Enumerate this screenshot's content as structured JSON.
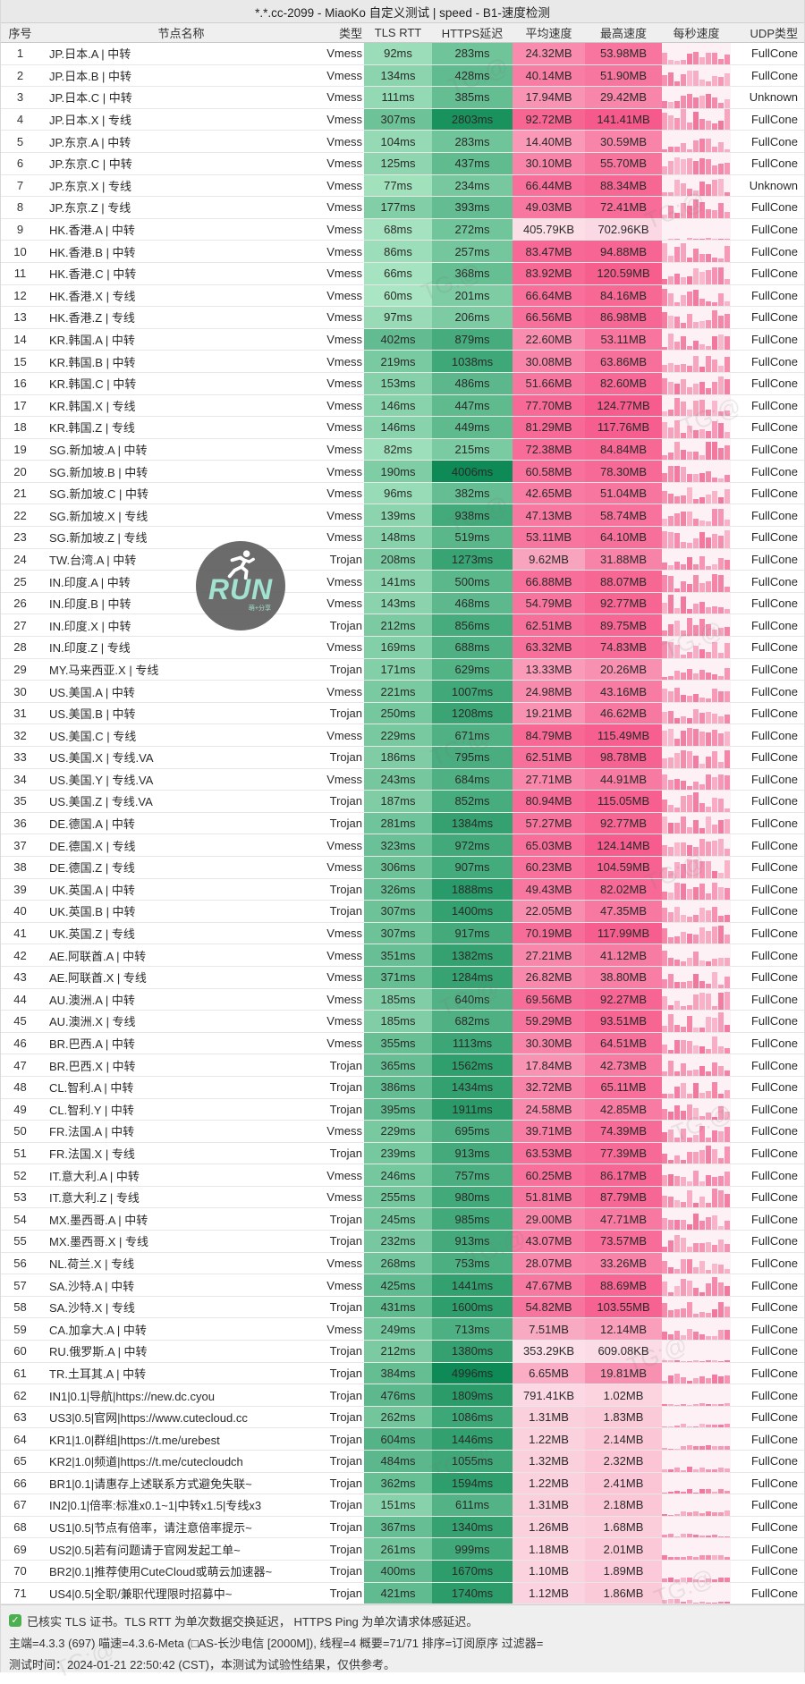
{
  "title": "*.*.cc-2099 - MiaoKo 自定义测试 | speed - B1-速度检测",
  "columns": [
    "序号",
    "节点名称",
    "类型",
    "TLS RTT",
    "HTTPS延迟",
    "平均速度",
    "最高速度",
    "每秒速度",
    "UDP类型"
  ],
  "rows": [
    [
      1,
      "JP.日本.A | 中转",
      "Vmess",
      "92ms",
      "283ms",
      "24.32MB",
      "53.98MB",
      "FullCone"
    ],
    [
      2,
      "JP.日本.B | 中转",
      "Vmess",
      "134ms",
      "428ms",
      "40.14MB",
      "51.90MB",
      "FullCone"
    ],
    [
      3,
      "JP.日本.C | 中转",
      "Vmess",
      "111ms",
      "385ms",
      "17.94MB",
      "29.42MB",
      "Unknown"
    ],
    [
      4,
      "JP.日本.X | 专线",
      "Vmess",
      "307ms",
      "2803ms",
      "92.72MB",
      "141.41MB",
      "FullCone"
    ],
    [
      5,
      "JP.东京.A | 中转",
      "Vmess",
      "104ms",
      "283ms",
      "14.40MB",
      "30.59MB",
      "FullCone"
    ],
    [
      6,
      "JP.东京.C | 中转",
      "Vmess",
      "125ms",
      "437ms",
      "30.10MB",
      "55.70MB",
      "FullCone"
    ],
    [
      7,
      "JP.东京.X | 专线",
      "Vmess",
      "77ms",
      "234ms",
      "66.44MB",
      "88.34MB",
      "Unknown"
    ],
    [
      8,
      "JP.东京.Z | 专线",
      "Vmess",
      "177ms",
      "393ms",
      "49.03MB",
      "72.41MB",
      "FullCone"
    ],
    [
      9,
      "HK.香港.A | 中转",
      "Vmess",
      "68ms",
      "272ms",
      "405.79KB",
      "702.96KB",
      "FullCone"
    ],
    [
      10,
      "HK.香港.B | 中转",
      "Vmess",
      "86ms",
      "257ms",
      "83.47MB",
      "94.88MB",
      "FullCone"
    ],
    [
      11,
      "HK.香港.C | 中转",
      "Vmess",
      "66ms",
      "368ms",
      "83.92MB",
      "120.59MB",
      "FullCone"
    ],
    [
      12,
      "HK.香港.X | 专线",
      "Vmess",
      "60ms",
      "201ms",
      "66.64MB",
      "84.16MB",
      "FullCone"
    ],
    [
      13,
      "HK.香港.Z | 专线",
      "Vmess",
      "97ms",
      "206ms",
      "66.56MB",
      "86.98MB",
      "FullCone"
    ],
    [
      14,
      "KR.韩国.A | 中转",
      "Vmess",
      "402ms",
      "879ms",
      "22.60MB",
      "53.11MB",
      "FullCone"
    ],
    [
      15,
      "KR.韩国.B | 中转",
      "Vmess",
      "219ms",
      "1038ms",
      "30.08MB",
      "63.86MB",
      "FullCone"
    ],
    [
      16,
      "KR.韩国.C | 中转",
      "Vmess",
      "153ms",
      "486ms",
      "51.66MB",
      "82.60MB",
      "FullCone"
    ],
    [
      17,
      "KR.韩国.X | 专线",
      "Vmess",
      "146ms",
      "447ms",
      "77.70MB",
      "124.77MB",
      "FullCone"
    ],
    [
      18,
      "KR.韩国.Z | 专线",
      "Vmess",
      "146ms",
      "449ms",
      "81.29MB",
      "117.76MB",
      "FullCone"
    ],
    [
      19,
      "SG.新加坡.A | 中转",
      "Vmess",
      "82ms",
      "215ms",
      "72.38MB",
      "84.84MB",
      "FullCone"
    ],
    [
      20,
      "SG.新加坡.B | 中转",
      "Vmess",
      "190ms",
      "4006ms",
      "60.58MB",
      "78.30MB",
      "FullCone"
    ],
    [
      21,
      "SG.新加坡.C | 中转",
      "Vmess",
      "96ms",
      "382ms",
      "42.65MB",
      "51.04MB",
      "FullCone"
    ],
    [
      22,
      "SG.新加坡.X | 专线",
      "Vmess",
      "139ms",
      "938ms",
      "47.13MB",
      "58.74MB",
      "FullCone"
    ],
    [
      23,
      "SG.新加坡.Z | 专线",
      "Vmess",
      "148ms",
      "519ms",
      "53.11MB",
      "64.10MB",
      "FullCone"
    ],
    [
      24,
      "TW.台湾.A | 中转",
      "Trojan",
      "208ms",
      "1273ms",
      "9.62MB",
      "31.88MB",
      "FullCone"
    ],
    [
      25,
      "IN.印度.A | 中转",
      "Vmess",
      "141ms",
      "500ms",
      "66.88MB",
      "88.07MB",
      "FullCone"
    ],
    [
      26,
      "IN.印度.B | 中转",
      "Vmess",
      "143ms",
      "468ms",
      "54.79MB",
      "92.77MB",
      "FullCone"
    ],
    [
      27,
      "IN.印度.X | 中转",
      "Trojan",
      "212ms",
      "856ms",
      "62.51MB",
      "89.75MB",
      "FullCone"
    ],
    [
      28,
      "IN.印度.Z | 专线",
      "Vmess",
      "169ms",
      "688ms",
      "63.32MB",
      "74.83MB",
      "FullCone"
    ],
    [
      29,
      "MY.马来西亚.X | 专线",
      "Trojan",
      "171ms",
      "629ms",
      "13.33MB",
      "20.26MB",
      "FullCone"
    ],
    [
      30,
      "US.美国.A | 中转",
      "Vmess",
      "221ms",
      "1007ms",
      "24.98MB",
      "43.16MB",
      "FullCone"
    ],
    [
      31,
      "US.美国.B | 中转",
      "Trojan",
      "250ms",
      "1208ms",
      "19.21MB",
      "46.62MB",
      "FullCone"
    ],
    [
      32,
      "US.美国.C | 专线",
      "Vmess",
      "229ms",
      "671ms",
      "84.79MB",
      "115.49MB",
      "FullCone"
    ],
    [
      33,
      "US.美国.X | 专线.VA",
      "Trojan",
      "186ms",
      "795ms",
      "62.51MB",
      "98.78MB",
      "FullCone"
    ],
    [
      34,
      "US.美国.Y | 专线.VA",
      "Vmess",
      "243ms",
      "684ms",
      "27.71MB",
      "44.91MB",
      "FullCone"
    ],
    [
      35,
      "US.美国.Z | 专线.VA",
      "Trojan",
      "187ms",
      "852ms",
      "80.94MB",
      "115.05MB",
      "FullCone"
    ],
    [
      36,
      "DE.德国.A | 中转",
      "Trojan",
      "281ms",
      "1384ms",
      "57.27MB",
      "92.77MB",
      "FullCone"
    ],
    [
      37,
      "DE.德国.X | 专线",
      "Vmess",
      "323ms",
      "972ms",
      "65.03MB",
      "124.14MB",
      "FullCone"
    ],
    [
      38,
      "DE.德国.Z | 专线",
      "Vmess",
      "306ms",
      "907ms",
      "60.23MB",
      "104.59MB",
      "FullCone"
    ],
    [
      39,
      "UK.英国.A | 中转",
      "Trojan",
      "326ms",
      "1888ms",
      "49.43MB",
      "82.02MB",
      "FullCone"
    ],
    [
      40,
      "UK.英国.B | 中转",
      "Trojan",
      "307ms",
      "1400ms",
      "22.05MB",
      "47.35MB",
      "FullCone"
    ],
    [
      41,
      "UK.英国.Z | 专线",
      "Vmess",
      "307ms",
      "917ms",
      "70.19MB",
      "117.99MB",
      "FullCone"
    ],
    [
      42,
      "AE.阿联酋.A | 中转",
      "Vmess",
      "351ms",
      "1382ms",
      "27.21MB",
      "41.12MB",
      "FullCone"
    ],
    [
      43,
      "AE.阿联酋.X | 专线",
      "Vmess",
      "371ms",
      "1284ms",
      "26.82MB",
      "38.80MB",
      "FullCone"
    ],
    [
      44,
      "AU.澳洲.A | 中转",
      "Vmess",
      "185ms",
      "640ms",
      "69.56MB",
      "92.27MB",
      "FullCone"
    ],
    [
      45,
      "AU.澳洲.X | 专线",
      "Vmess",
      "185ms",
      "682ms",
      "59.29MB",
      "93.51MB",
      "FullCone"
    ],
    [
      46,
      "BR.巴西.A | 中转",
      "Vmess",
      "355ms",
      "1113ms",
      "30.30MB",
      "64.51MB",
      "FullCone"
    ],
    [
      47,
      "BR.巴西.X | 中转",
      "Trojan",
      "365ms",
      "1562ms",
      "17.84MB",
      "42.73MB",
      "FullCone"
    ],
    [
      48,
      "CL.智利.A | 中转",
      "Trojan",
      "386ms",
      "1434ms",
      "32.72MB",
      "65.11MB",
      "FullCone"
    ],
    [
      49,
      "CL.智利.Y | 中转",
      "Trojan",
      "395ms",
      "1911ms",
      "24.58MB",
      "42.85MB",
      "FullCone"
    ],
    [
      50,
      "FR.法国.A | 中转",
      "Vmess",
      "229ms",
      "695ms",
      "39.71MB",
      "74.39MB",
      "FullCone"
    ],
    [
      51,
      "FR.法国.X | 专线",
      "Trojan",
      "239ms",
      "913ms",
      "63.53MB",
      "77.39MB",
      "FullCone"
    ],
    [
      52,
      "IT.意大利.A | 中转",
      "Vmess",
      "246ms",
      "757ms",
      "60.25MB",
      "86.17MB",
      "FullCone"
    ],
    [
      53,
      "IT.意大利.Z | 专线",
      "Vmess",
      "255ms",
      "980ms",
      "51.81MB",
      "87.79MB",
      "FullCone"
    ],
    [
      54,
      "MX.墨西哥.A | 中转",
      "Trojan",
      "245ms",
      "985ms",
      "29.00MB",
      "47.71MB",
      "FullCone"
    ],
    [
      55,
      "MX.墨西哥.X | 专线",
      "Trojan",
      "232ms",
      "913ms",
      "43.07MB",
      "73.57MB",
      "FullCone"
    ],
    [
      56,
      "NL.荷兰.X | 专线",
      "Vmess",
      "268ms",
      "753ms",
      "28.07MB",
      "33.26MB",
      "FullCone"
    ],
    [
      57,
      "SA.沙特.A | 中转",
      "Vmess",
      "425ms",
      "1441ms",
      "47.67MB",
      "88.69MB",
      "FullCone"
    ],
    [
      58,
      "SA.沙特.X | 专线",
      "Trojan",
      "431ms",
      "1600ms",
      "54.82MB",
      "103.55MB",
      "FullCone"
    ],
    [
      59,
      "CA.加拿大.A | 中转",
      "Vmess",
      "249ms",
      "713ms",
      "7.51MB",
      "12.14MB",
      "FullCone"
    ],
    [
      60,
      "RU.俄罗斯.A | 中转",
      "Trojan",
      "212ms",
      "1380ms",
      "353.29KB",
      "609.08KB",
      "FullCone"
    ],
    [
      61,
      "TR.土耳其.A | 中转",
      "Trojan",
      "384ms",
      "4996ms",
      "6.65MB",
      "19.81MB",
      "FullCone"
    ],
    [
      62,
      "IN1|0.1|导航|https://new.dc.cyou",
      "Trojan",
      "476ms",
      "1809ms",
      "791.41KB",
      "1.02MB",
      "FullCone"
    ],
    [
      63,
      "US3|0.5|官网|https://www.cutecloud.cc",
      "Trojan",
      "262ms",
      "1086ms",
      "1.31MB",
      "1.83MB",
      "FullCone"
    ],
    [
      64,
      "KR1|1.0|群组|https://t.me/urebest",
      "Trojan",
      "604ms",
      "1446ms",
      "1.22MB",
      "2.14MB",
      "FullCone"
    ],
    [
      65,
      "KR2|1.0|频道|https://t.me/cutecloudch",
      "Trojan",
      "484ms",
      "1055ms",
      "1.32MB",
      "2.32MB",
      "FullCone"
    ],
    [
      66,
      "BR1|0.1|请惠存上述联系方式避免失联~",
      "Trojan",
      "362ms",
      "1594ms",
      "1.22MB",
      "2.41MB",
      "FullCone"
    ],
    [
      67,
      "IN2|0.1|倍率:标准x0.1~1|中转x1.5|专线x3",
      "Trojan",
      "151ms",
      "611ms",
      "1.31MB",
      "2.18MB",
      "FullCone"
    ],
    [
      68,
      "US1|0.5|节点有倍率，请注意倍率提示~",
      "Trojan",
      "367ms",
      "1340ms",
      "1.26MB",
      "1.68MB",
      "FullCone"
    ],
    [
      69,
      "US2|0.5|若有问题请于官网发起工单~",
      "Trojan",
      "261ms",
      "999ms",
      "1.18MB",
      "2.01MB",
      "FullCone"
    ],
    [
      70,
      "BR2|0.1|推荐使用CuteCloud或萌云加速器~",
      "Trojan",
      "400ms",
      "1670ms",
      "1.10MB",
      "1.89MB",
      "FullCone"
    ],
    [
      71,
      "US4|0.5|全职/兼职代理限时招募中~",
      "Trojan",
      "421ms",
      "1740ms",
      "1.12MB",
      "1.86MB",
      "FullCone"
    ]
  ],
  "footer": {
    "line1": "已核实 TLS 证书。TLS RTT 为单次数据交换延迟， HTTPS Ping 为单次请求体感延迟。",
    "line2": "主端=4.3.3 (697) 喵速=4.3.6-Meta (□AS-长沙电信 [2000M]), 线程=4 概要=71/71 排序=订阅原序 过滤器=",
    "line3": "测试时间：2024-01-21 22:50:42 (CST)，本测试为试验性结果，仅供参考。"
  },
  "logo": {
    "text": "RUN",
    "subtext": "萌+分享"
  },
  "watermark_text": "TG:@",
  "colors": {
    "green_light": "#aae6c3",
    "green_dark": "#0d8a55",
    "pink_light": "#fce8ee",
    "pink_dark": "#f6598b",
    "bar_pink": "#f2759c",
    "spark_bg": "#fdf1f5",
    "check_green": "#4caf50",
    "logo_bg": "#5f5f5f",
    "logo_accent": "#9be0cd"
  }
}
